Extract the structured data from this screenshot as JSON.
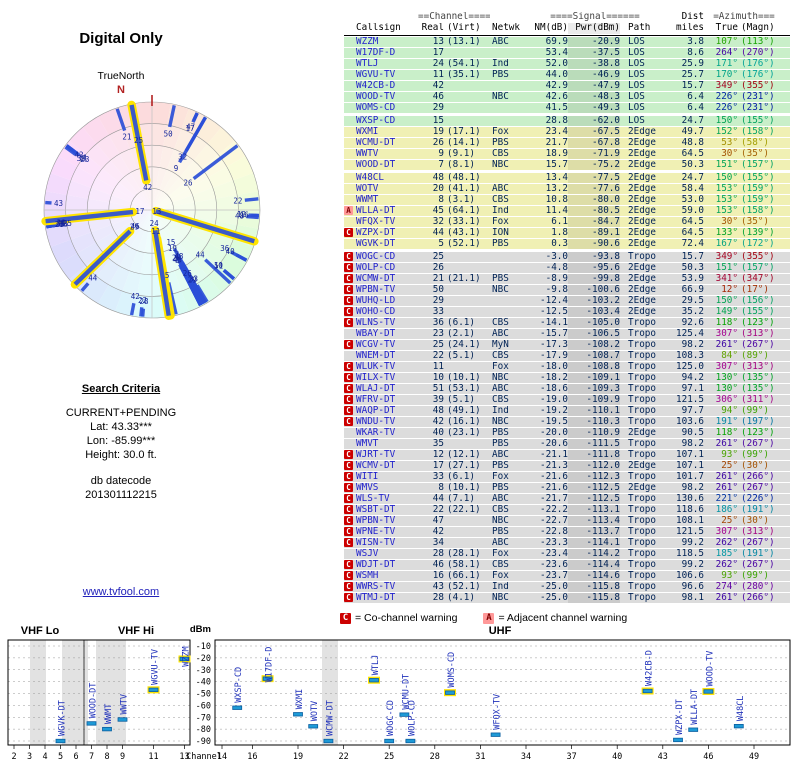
{
  "page": {
    "title": "Digital Only",
    "true_north": "TrueNorth",
    "north": "N"
  },
  "search": {
    "heading": "Search Criteria",
    "mode": "CURRENT+PENDING",
    "lat": "Lat: 43.33***",
    "lon": "Lon: -85.99***",
    "height": "Height: 30.0 ft.",
    "datecode_label": "db datecode",
    "datecode": "201301112215"
  },
  "link": {
    "text": "www.tvfool.com"
  },
  "legend": {
    "c": "C",
    "c_text": "= Co-channel warning",
    "a": "A",
    "a_text": "= Adjacent channel warning"
  },
  "table": {
    "group_channel": "==Channel====",
    "group_signal": "====Signal======",
    "group_dist": "Dist",
    "group_azimuth": "=Azimuth===",
    "col_callsign": "Callsign",
    "col_real": "Real",
    "col_virt": "(Virt)",
    "col_netwk": "Netwk",
    "col_nm": "NM(dB)",
    "col_pwr": "Pwr(dBm)",
    "col_path": "Path",
    "col_miles": "miles",
    "col_true": "True",
    "col_magn": "(Magn)"
  },
  "spectrum_labels": {
    "vhf_lo": "VHF Lo",
    "vhf_hi": "VHF Hi",
    "uhf": "UHF",
    "dbm": "dBm",
    "channel": "Channel"
  },
  "colors": {
    "bar_blue": "#2b4fd8",
    "highlight_yellow": "#ffe400",
    "marker_cyan": "#1e9ad6",
    "marker_edge": "#0b5fa0",
    "green_band": "#c9efc9",
    "yellow_band": "#f0f0b4",
    "gray_band": "#dcdcdc",
    "co_red": "#cc0000",
    "adj_pink": "#ff9999"
  },
  "chart_data": [
    {
      "type": "table",
      "title": "Digital Only",
      "columns": [
        "marker",
        "callsign",
        "real_ch",
        "virt_ch",
        "network",
        "nm_db",
        "pwr_dbm",
        "path",
        "dist_miles",
        "azimuth_true_deg",
        "azimuth_magn_deg",
        "band",
        "gap_before"
      ],
      "rows": [
        [
          "",
          "WZZM",
          13,
          "(13.1)",
          "ABC",
          69.9,
          -20.9,
          "LOS",
          3.8,
          107,
          113,
          "g",
          0
        ],
        [
          "",
          "W17DF-D",
          17,
          "",
          "",
          53.4,
          -37.5,
          "LOS",
          8.6,
          264,
          270,
          "g",
          0
        ],
        [
          "",
          "WTLJ",
          24,
          "(54.1)",
          "Ind",
          52.0,
          -38.8,
          "LOS",
          25.9,
          171,
          176,
          "g",
          0
        ],
        [
          "",
          "WGVU-TV",
          11,
          "(35.1)",
          "PBS",
          44.0,
          -46.9,
          "LOS",
          25.7,
          170,
          176,
          "g",
          0
        ],
        [
          "",
          "W42CB-D",
          42,
          "",
          "",
          42.9,
          -47.9,
          "LOS",
          15.7,
          349,
          355,
          "g",
          0
        ],
        [
          "",
          "WOOD-TV",
          46,
          "",
          "NBC",
          42.6,
          -48.3,
          "LOS",
          6.4,
          226,
          231,
          "g",
          0
        ],
        [
          "",
          "WOMS-CD",
          29,
          "",
          "",
          41.5,
          -49.3,
          "LOS",
          6.4,
          226,
          231,
          "g",
          0
        ],
        [
          "",
          "WXSP-CD",
          15,
          "",
          "",
          28.8,
          -62.0,
          "LOS",
          24.7,
          150,
          155,
          "g",
          1
        ],
        [
          "",
          "WXMI",
          19,
          "(17.1)",
          "Fox",
          23.4,
          -67.5,
          "2Edge",
          49.7,
          152,
          158,
          "y",
          0
        ],
        [
          "",
          "WCMU-DT",
          26,
          "(14.1)",
          "PBS",
          21.7,
          -67.8,
          "2Edge",
          48.8,
          53,
          58,
          "y",
          0
        ],
        [
          "",
          "WWTV",
          9,
          "(9.1)",
          "CBS",
          18.9,
          -71.9,
          "2Edge",
          64.5,
          30,
          35,
          "y",
          0
        ],
        [
          "",
          "WOOD-DT",
          7,
          "(8.1)",
          "NBC",
          15.7,
          -75.2,
          "2Edge",
          50.3,
          151,
          157,
          "y",
          0
        ],
        [
          "",
          "W48CL",
          48,
          "(48.1)",
          "",
          13.4,
          -77.5,
          "2Edge",
          24.7,
          150,
          155,
          "y",
          1
        ],
        [
          "",
          "WOTV",
          20,
          "(41.1)",
          "ABC",
          13.2,
          -77.6,
          "2Edge",
          58.4,
          153,
          159,
          "y",
          0
        ],
        [
          "",
          "WWMT",
          8,
          "(3.1)",
          "CBS",
          10.8,
          -80.0,
          "2Edge",
          53.0,
          153,
          159,
          "y",
          0
        ],
        [
          "A",
          "WLLA-DT",
          45,
          "(64.1)",
          "Ind",
          11.4,
          -80.5,
          "2Edge",
          59.0,
          153,
          158,
          "y",
          0
        ],
        [
          "",
          "WFQX-TV",
          32,
          "(33.1)",
          "Fox",
          6.1,
          -84.7,
          "2Edge",
          64.5,
          30,
          35,
          "y",
          0
        ],
        [
          "C",
          "WZPX-DT",
          44,
          "(43.1)",
          "ION",
          1.8,
          -89.1,
          "2Edge",
          64.5,
          133,
          139,
          "y",
          0
        ],
        [
          "",
          "WGVK-DT",
          5,
          "(52.1)",
          "PBS",
          0.3,
          -90.6,
          "2Edge",
          72.4,
          167,
          172,
          "y",
          0
        ],
        [
          "C",
          "WOGC-CD",
          25,
          "",
          "",
          -3.0,
          -93.8,
          "Tropo",
          15.7,
          349,
          355,
          "n",
          1
        ],
        [
          "C",
          "WOLP-CD",
          26,
          "",
          "",
          -4.8,
          -95.6,
          "2Edge",
          50.3,
          151,
          157,
          "n",
          0
        ],
        [
          "C",
          "WCMW-DT",
          21,
          "(21.1)",
          "PBS",
          -8.9,
          -99.8,
          "2Edge",
          53.9,
          341,
          347,
          "n",
          0
        ],
        [
          "C",
          "WPBN-TV",
          50,
          "",
          "NBC",
          -9.8,
          -100.6,
          "2Edge",
          66.9,
          12,
          17,
          "n",
          0
        ],
        [
          "C",
          "WUHQ-LD",
          29,
          "",
          "",
          -12.4,
          -103.2,
          "2Edge",
          29.5,
          150,
          156,
          "n",
          0
        ],
        [
          "C",
          "WOHO-CD",
          33,
          "",
          "",
          -12.5,
          -103.4,
          "2Edge",
          35.2,
          149,
          155,
          "n",
          0
        ],
        [
          "C",
          "WLNS-TV",
          36,
          "(6.1)",
          "CBS",
          -14.1,
          -105.0,
          "Tropo",
          92.6,
          118,
          123,
          "n",
          0
        ],
        [
          "",
          "WBAY-DT",
          23,
          "(2.1)",
          "ABC",
          -15.7,
          -106.5,
          "Tropo",
          125.4,
          307,
          313,
          "n",
          0
        ],
        [
          "C",
          "WCGV-TV",
          25,
          "(24.1)",
          "MyN",
          -17.3,
          -108.2,
          "Tropo",
          98.2,
          261,
          267,
          "n",
          0
        ],
        [
          "",
          "WNEM-DT",
          22,
          "(5.1)",
          "CBS",
          -17.9,
          -108.7,
          "Tropo",
          108.3,
          84,
          89,
          "n",
          0
        ],
        [
          "C",
          "WLUK-TV",
          11,
          "",
          "Fox",
          -18.0,
          -108.8,
          "Tropo",
          125.0,
          307,
          313,
          "n",
          0
        ],
        [
          "C",
          "WILX-TV",
          10,
          "(10.1)",
          "NBC",
          -18.2,
          -109.1,
          "Tropo",
          94.2,
          130,
          135,
          "n",
          0
        ],
        [
          "C",
          "WLAJ-DT",
          51,
          "(53.1)",
          "ABC",
          -18.6,
          -109.3,
          "Tropo",
          97.1,
          130,
          135,
          "n",
          0
        ],
        [
          "C",
          "WFRV-DT",
          39,
          "(5.1)",
          "CBS",
          -19.0,
          -109.9,
          "Tropo",
          121.5,
          306,
          311,
          "n",
          0
        ],
        [
          "C",
          "WAQP-DT",
          48,
          "(49.1)",
          "Ind",
          -19.2,
          -110.1,
          "Tropo",
          97.7,
          94,
          99,
          "n",
          0
        ],
        [
          "C",
          "WNDU-TV",
          42,
          "(16.1)",
          "NBC",
          -19.5,
          -110.3,
          "Tropo",
          103.6,
          191,
          197,
          "n",
          0
        ],
        [
          "",
          "WKAR-TV",
          40,
          "(23.1)",
          "PBS",
          -20.0,
          -110.9,
          "2Edge",
          90.5,
          118,
          123,
          "n",
          0
        ],
        [
          "",
          "WMVT",
          35,
          "",
          "PBS",
          -20.6,
          -111.5,
          "Tropo",
          98.2,
          261,
          267,
          "n",
          0
        ],
        [
          "C",
          "WJRT-TV",
          12,
          "(12.1)",
          "ABC",
          -21.1,
          -111.8,
          "Tropo",
          107.1,
          93,
          99,
          "n",
          0
        ],
        [
          "C",
          "WCMV-DT",
          17,
          "(27.1)",
          "PBS",
          -21.3,
          -112.0,
          "2Edge",
          107.1,
          25,
          30,
          "n",
          0
        ],
        [
          "C",
          "WITI",
          33,
          "(6.1)",
          "Fox",
          -21.6,
          -112.3,
          "Tropo",
          101.7,
          261,
          266,
          "n",
          0
        ],
        [
          "C",
          "WMVS",
          8,
          "(10.1)",
          "PBS",
          -21.6,
          -112.5,
          "2Edge",
          98.2,
          261,
          267,
          "n",
          0
        ],
        [
          "C",
          "WLS-TV",
          44,
          "(7.1)",
          "ABC",
          -21.7,
          -112.5,
          "Tropo",
          130.6,
          221,
          226,
          "n",
          0
        ],
        [
          "C",
          "WSBT-DT",
          22,
          "(22.1)",
          "CBS",
          -22.2,
          -113.1,
          "Tropo",
          118.6,
          186,
          191,
          "n",
          0
        ],
        [
          "C",
          "WPBN-TV",
          47,
          "",
          "NBC",
          -22.7,
          -113.4,
          "Tropo",
          108.1,
          25,
          30,
          "n",
          0
        ],
        [
          "C",
          "WPNE-TV",
          42,
          "",
          "PBS",
          -22.8,
          -113.7,
          "Tropo",
          121.5,
          307,
          313,
          "n",
          0
        ],
        [
          "C",
          "WISN-TV",
          34,
          "",
          "ABC",
          -23.3,
          -114.1,
          "Tropo",
          99.2,
          262,
          267,
          "n",
          0
        ],
        [
          "",
          "WSJV",
          28,
          "(28.1)",
          "Fox",
          -23.4,
          -114.2,
          "Tropo",
          118.5,
          185,
          191,
          "n",
          0
        ],
        [
          "C",
          "WDJT-DT",
          46,
          "(58.1)",
          "CBS",
          -23.6,
          -114.4,
          "Tropo",
          99.2,
          262,
          267,
          "n",
          0
        ],
        [
          "C",
          "WSMH",
          16,
          "(66.1)",
          "Fox",
          -23.7,
          -114.6,
          "Tropo",
          106.6,
          93,
          99,
          "n",
          0
        ],
        [
          "C",
          "WWRS-TV",
          43,
          "(52.1)",
          "Ind",
          -25.0,
          -115.8,
          "Tropo",
          96.6,
          274,
          280,
          "n",
          0
        ],
        [
          "C",
          "WTMJ-DT",
          28,
          "(4.1)",
          "NBC",
          -25.0,
          -115.8,
          "Tropo",
          98.1,
          261,
          266,
          "n",
          0
        ]
      ]
    },
    {
      "type": "scatter",
      "subtype": "polar-azimuth-radar",
      "title": "Digital Only",
      "north_label": "N",
      "orientation_label": "TrueNorth",
      "note": "Bars plotted from table rows: angle = azimuth_true_deg, length = nm_db (stronger toward center); yellow outline = LOS stations with nm_db > 40; label = real channel number"
    },
    {
      "type": "scatter",
      "subtype": "channel-spectrum",
      "panels": [
        "VHF Lo",
        "VHF Hi",
        "UHF"
      ],
      "ylabel": "dBm",
      "xlabel": "Channel",
      "ylim": [
        -90,
        -10
      ],
      "y_ticks": [
        -10,
        -20,
        -30,
        -40,
        -50,
        -60,
        -70,
        -80,
        -90
      ],
      "x_ticks_vhf": [
        2,
        3,
        4,
        5,
        6,
        7,
        8,
        9,
        11,
        13
      ],
      "x_ticks_uhf": [
        14,
        16,
        19,
        22,
        25,
        28,
        31,
        34,
        37,
        40,
        43,
        46,
        49
      ],
      "note": "Points from table rows with pwr_dbm >= -100: x = real_ch, y = pwr_dbm; yellow outline = LOS stations with nm_db > 40"
    }
  ]
}
